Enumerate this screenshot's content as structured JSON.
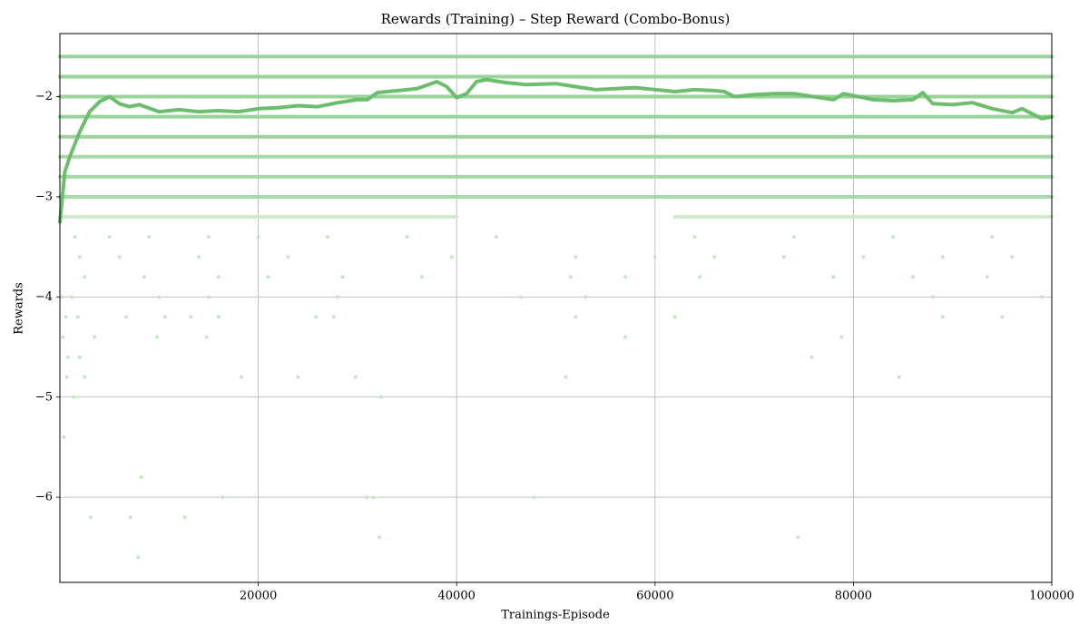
{
  "chart_data": {
    "type": "scatter",
    "title": "Rewards (Training) – Step Reward (Combo-Bonus)",
    "x_label": "Trainings-Episode",
    "y_label": "Rewards",
    "xlim": [
      0,
      100000
    ],
    "ylim": [
      -6.85,
      -1.37
    ],
    "xticks": [
      20000,
      40000,
      60000,
      80000,
      100000
    ],
    "yticks": [
      {
        "value": -6,
        "label": "−6"
      },
      {
        "value": -5,
        "label": "−5"
      },
      {
        "value": -4,
        "label": "−4"
      },
      {
        "value": -3,
        "label": "−3"
      },
      {
        "value": -2,
        "label": "−2"
      }
    ],
    "grid": true,
    "series": [
      {
        "type": "line",
        "color": "#98d39a",
        "x": [
          0,
          100000
        ],
        "values": [
          -1.6,
          -1.6
        ]
      },
      {
        "type": "line",
        "color": "#98d39a",
        "x": [
          0,
          100000
        ],
        "values": [
          -1.8,
          -1.8
        ]
      },
      {
        "type": "line",
        "color": "#98d39a",
        "x": [
          0,
          100000
        ],
        "values": [
          -2.0,
          -2.0
        ]
      },
      {
        "type": "line",
        "color": "#98d39a",
        "x": [
          0,
          100000
        ],
        "values": [
          -2.2,
          -2.2
        ]
      },
      {
        "type": "line",
        "color": "#98d39a",
        "x": [
          0,
          100000
        ],
        "values": [
          -2.4,
          -2.4
        ]
      },
      {
        "type": "line",
        "color": "#a6d9a7",
        "x": [
          0,
          100000
        ],
        "values": [
          -2.6,
          -2.6
        ]
      },
      {
        "type": "line",
        "color": "#a6d9a7",
        "x": [
          0,
          100000
        ],
        "values": [
          -2.8,
          -2.8
        ]
      },
      {
        "type": "line",
        "color": "#a9d8aa",
        "x": [
          0,
          100000
        ],
        "values": [
          -3.0,
          -3.0
        ]
      },
      {
        "type": "line",
        "color": "#cfeacf",
        "x": [
          0,
          40000,
          51000,
          62000,
          100000
        ],
        "values": [
          -3.2,
          -3.2,
          null,
          -3.2,
          -3.2
        ]
      },
      {
        "type": "scatter",
        "color": "#c4e6c5",
        "x": [
          1500,
          5000,
          9000,
          15000,
          20000,
          27000,
          35000,
          44000,
          64000,
          74000,
          84000,
          94000
        ],
        "values": [
          -3.4,
          -3.4,
          -3.4,
          -3.4,
          -3.4,
          -3.4,
          -3.4,
          -3.4,
          -3.4,
          -3.4,
          -3.4,
          -3.4
        ]
      },
      {
        "type": "scatter",
        "color": "#c4e6c5",
        "x": [
          2000,
          6000,
          14000,
          23000,
          39500,
          52000,
          60000,
          66000,
          73000,
          81000,
          89000,
          96000
        ],
        "values": [
          -3.6,
          -3.6,
          -3.6,
          -3.6,
          -3.6,
          -3.6,
          -3.6,
          -3.6,
          -3.6,
          -3.6,
          -3.6,
          -3.6
        ]
      },
      {
        "type": "scatter",
        "color": "#c4e6c5",
        "x": [
          2500,
          8500,
          16000,
          21000,
          28500,
          36500,
          51500,
          57000,
          64500,
          78000,
          86000,
          93500
        ],
        "values": [
          -3.8,
          -3.8,
          -3.8,
          -3.8,
          -3.8,
          -3.8,
          -3.8,
          -3.8,
          -3.8,
          -3.8,
          -3.8,
          -3.8
        ]
      },
      {
        "type": "scatter",
        "color": "#c4e6c5",
        "x": [
          200,
          1200,
          10000,
          15000,
          20000,
          28000,
          46500,
          53000,
          88000,
          99000
        ],
        "values": [
          -4.0,
          -4.0,
          -4.0,
          -4.0,
          -4.0,
          -4.0,
          -4.0,
          -4.0,
          -4.0,
          -4.0
        ]
      },
      {
        "type": "scatter",
        "color": "#c4e6c5",
        "x": [
          600,
          1800,
          6700,
          10600,
          13200,
          16000,
          25800,
          27600,
          52000,
          62000,
          89000,
          95000
        ],
        "values": [
          -4.2,
          -4.2,
          -4.2,
          -4.2,
          -4.2,
          -4.2,
          -4.2,
          -4.2,
          -4.2,
          -4.2,
          -4.2,
          -4.2
        ]
      },
      {
        "type": "scatter",
        "color": "#c4e6c5",
        "x": [
          300,
          3500,
          9800,
          14800,
          57000,
          78800
        ],
        "values": [
          -4.4,
          -4.4,
          -4.4,
          -4.4,
          -4.4,
          -4.4
        ]
      },
      {
        "type": "scatter",
        "color": "#c4e6c5",
        "x": [
          800,
          2000,
          75800
        ],
        "values": [
          -4.6,
          -4.6,
          -4.6
        ]
      },
      {
        "type": "scatter",
        "color": "#c4e6c5",
        "x": [
          700,
          2500,
          18300,
          24000,
          29800,
          51000,
          84600
        ],
        "values": [
          -4.8,
          -4.8,
          -4.8,
          -4.8,
          -4.8,
          -4.8,
          -4.8
        ]
      },
      {
        "type": "scatter",
        "color": "#c4e6c5",
        "x": [
          1400,
          32400
        ],
        "values": [
          -5.0,
          -5.0
        ]
      },
      {
        "type": "scatter",
        "color": "#c4e6c5",
        "x": [
          400
        ],
        "values": [
          -5.4
        ]
      },
      {
        "type": "scatter",
        "color": "#c4e6c5",
        "x": [
          8200
        ],
        "values": [
          -5.8
        ]
      },
      {
        "type": "scatter",
        "color": "#c4e6c5",
        "x": [
          16400,
          30900,
          31600,
          47800
        ],
        "values": [
          -6.0,
          -6.0,
          -6.0,
          -6.0
        ]
      },
      {
        "type": "scatter",
        "color": "#c4e6c5",
        "x": [
          3100,
          7100,
          12600
        ],
        "values": [
          -6.2,
          -6.2,
          -6.2
        ]
      },
      {
        "type": "scatter",
        "color": "#c4e6c5",
        "x": [
          32200,
          74400
        ],
        "values": [
          -6.4,
          -6.4
        ]
      },
      {
        "type": "scatter",
        "color": "#c4e6c5",
        "x": [
          7900
        ],
        "values": [
          -6.6
        ]
      },
      {
        "type": "line",
        "color": "#6cbd6c",
        "x": [
          0,
          500,
          1000,
          2000,
          3000,
          4000,
          5000,
          6000,
          7000,
          8000,
          10000,
          12000,
          14000,
          16000,
          18000,
          20000,
          22000,
          24000,
          26000,
          28000,
          30000,
          31000,
          32000,
          34000,
          36000,
          38000,
          39000,
          40000,
          41000,
          42000,
          43000,
          45000,
          47000,
          50000,
          52000,
          54000,
          56000,
          58000,
          60000,
          62000,
          64000,
          66000,
          67000,
          68000,
          70000,
          72000,
          74000,
          76000,
          78000,
          79000,
          80000,
          82000,
          84000,
          86000,
          87000,
          88000,
          90000,
          92000,
          94000,
          96000,
          97000,
          98000,
          99000,
          100000
        ],
        "values": [
          -3.25,
          -2.75,
          -2.6,
          -2.35,
          -2.15,
          -2.05,
          -2.0,
          -2.07,
          -2.1,
          -2.08,
          -2.15,
          -2.13,
          -2.15,
          -2.14,
          -2.15,
          -2.12,
          -2.11,
          -2.09,
          -2.1,
          -2.06,
          -2.03,
          -2.03,
          -1.96,
          -1.94,
          -1.92,
          -1.85,
          -1.9,
          -2.01,
          -1.97,
          -1.85,
          -1.83,
          -1.86,
          -1.88,
          -1.87,
          -1.9,
          -1.93,
          -1.92,
          -1.91,
          -1.93,
          -1.95,
          -1.93,
          -1.94,
          -1.95,
          -2.0,
          -1.98,
          -1.97,
          -1.97,
          -2.0,
          -2.03,
          -1.97,
          -1.99,
          -2.03,
          -2.04,
          -2.03,
          -1.96,
          -2.07,
          -2.08,
          -2.06,
          -2.12,
          -2.16,
          -2.12,
          -2.17,
          -2.22,
          -2.2
        ]
      }
    ]
  }
}
